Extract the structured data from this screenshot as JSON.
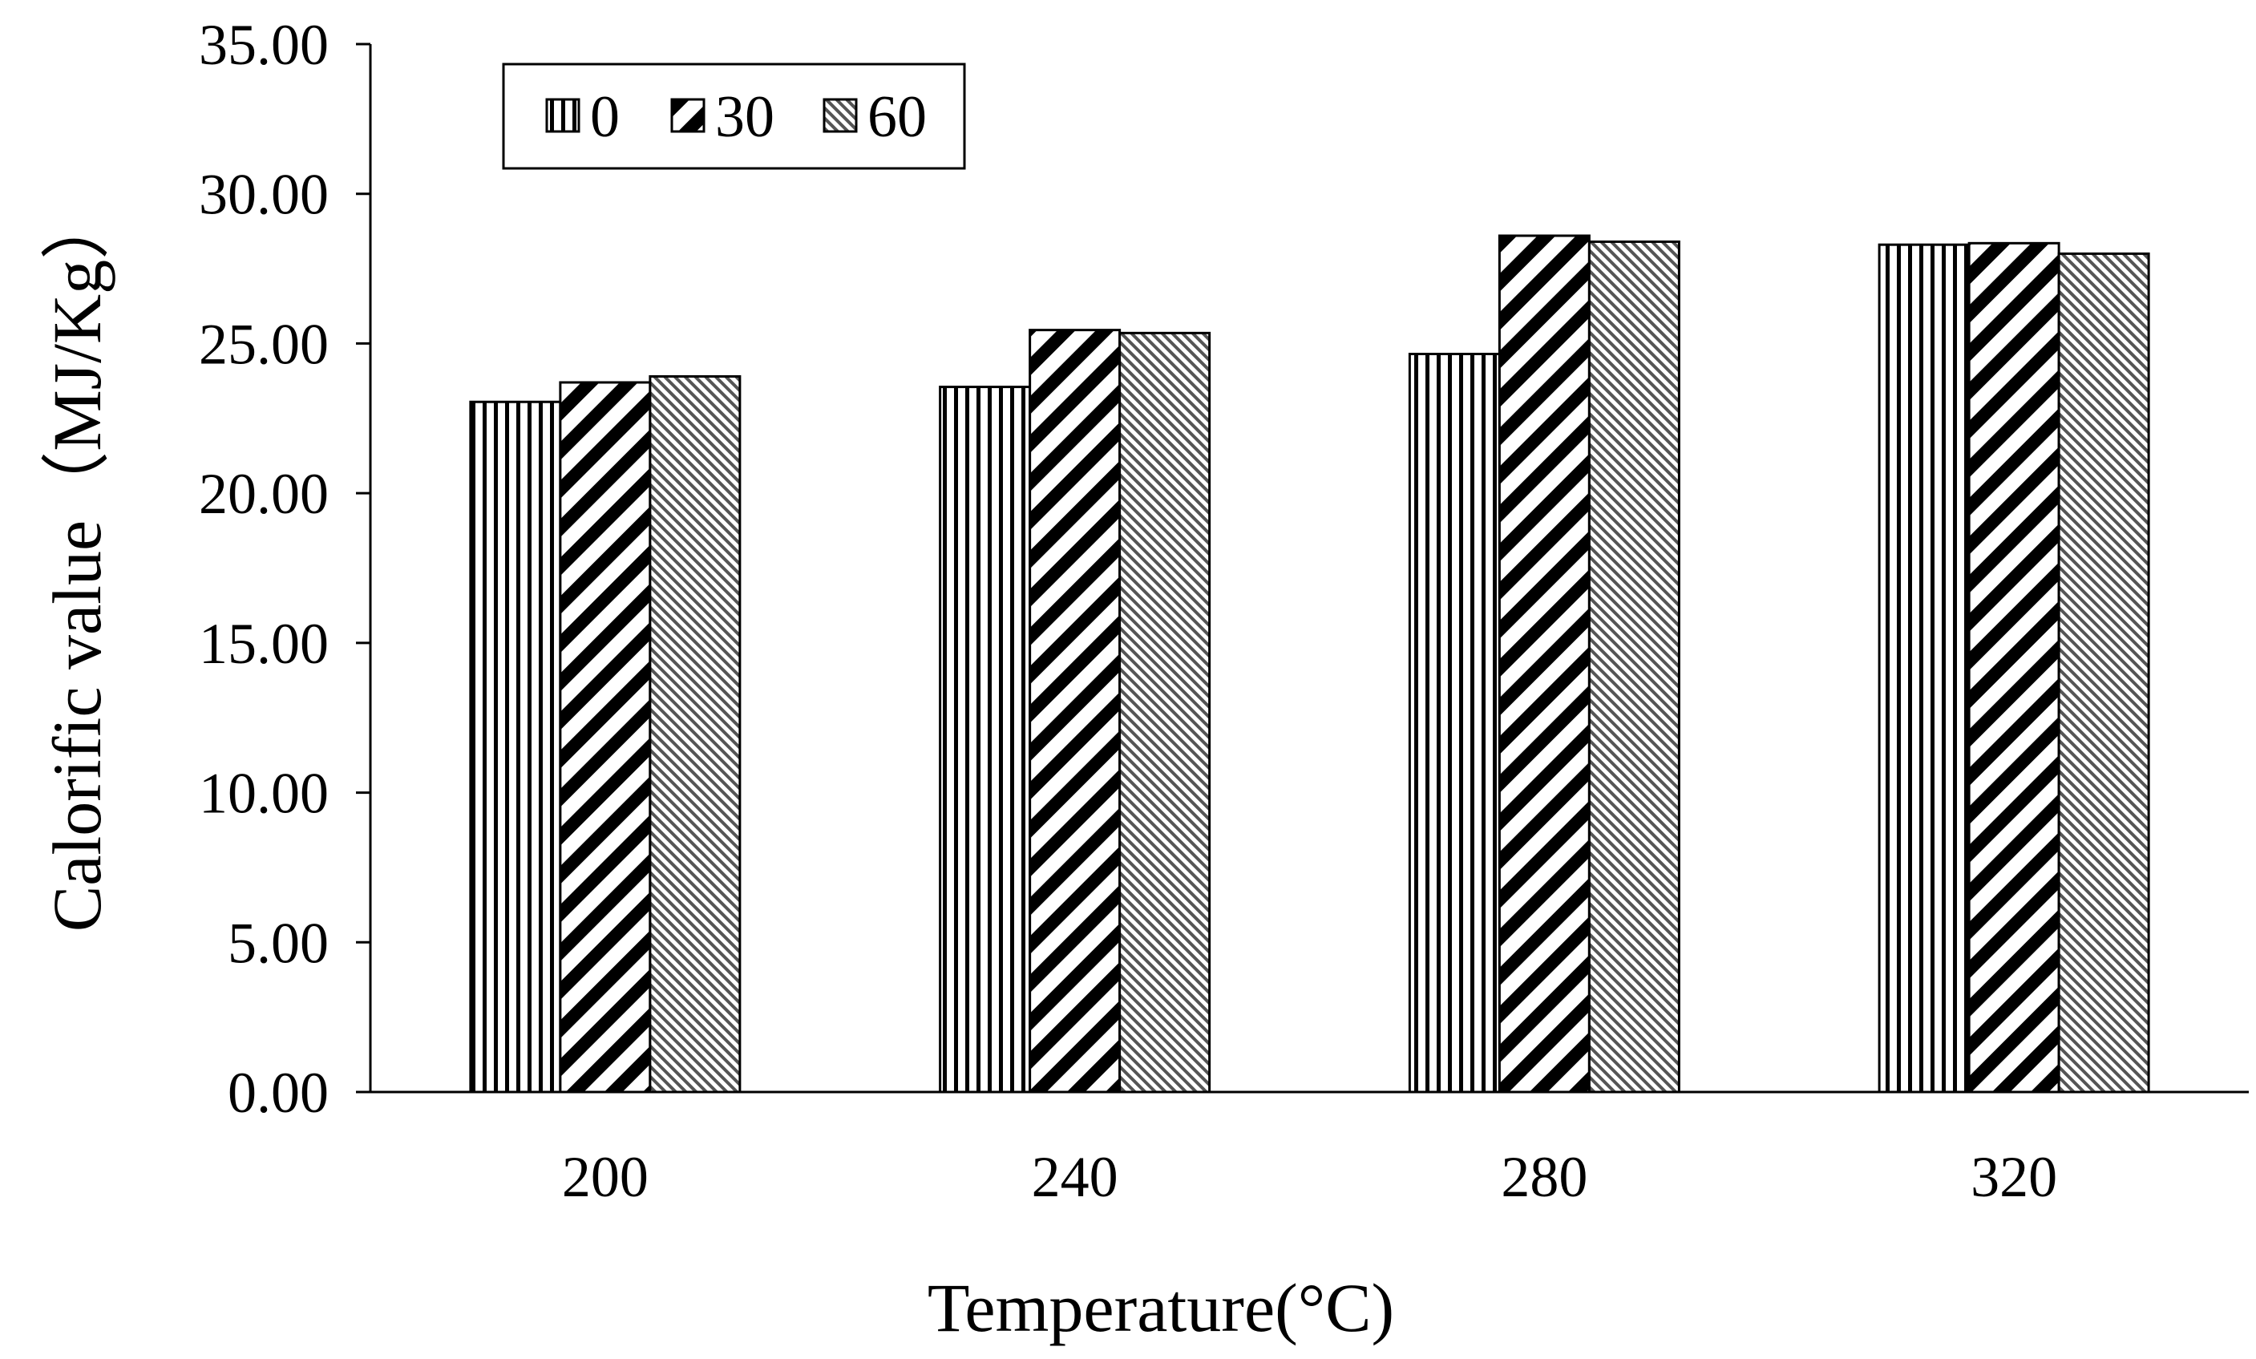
{
  "chart_data": {
    "type": "bar",
    "title": "",
    "xlabel": "Temperature(°C)",
    "ylabel": "Calorific value（MJ/Kg）",
    "categories": [
      "200",
      "240",
      "280",
      "320"
    ],
    "series": [
      {
        "name": "0",
        "values": [
          23.05,
          23.55,
          24.65,
          28.3
        ],
        "pattern": "vertical-lines"
      },
      {
        "name": "30",
        "values": [
          23.7,
          25.45,
          28.6,
          28.35
        ],
        "pattern": "diagonal-thick"
      },
      {
        "name": "60",
        "values": [
          23.9,
          25.35,
          28.4,
          28.0
        ],
        "pattern": "diagonal-fine"
      }
    ],
    "ylim": [
      0,
      35
    ],
    "yticks": [
      "0.00",
      "5.00",
      "10.00",
      "15.00",
      "20.00",
      "25.00",
      "30.00",
      "35.00"
    ],
    "grid": false,
    "legend_position": "top-left"
  },
  "colors": {
    "axis": "#000000",
    "background": "#ffffff"
  }
}
